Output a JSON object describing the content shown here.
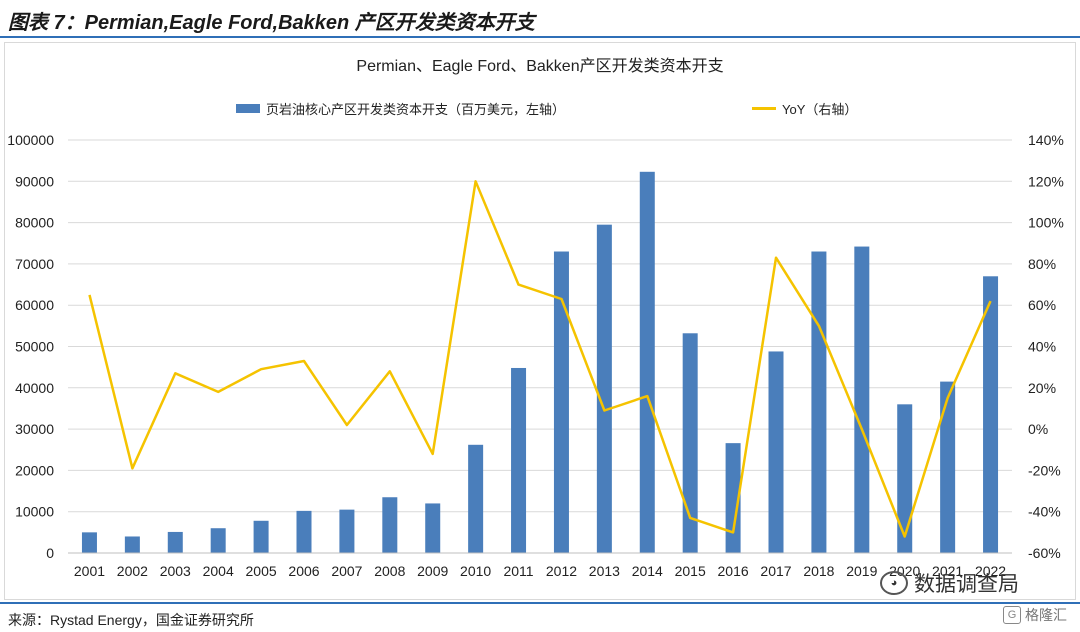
{
  "figure": {
    "title": "图表 7：Permian,Eagle Ford,Bakken 产区开发类资本开支",
    "source": "来源：Rystad Energy，国金证券研究所",
    "watermark_text": "数据调查局",
    "corner_logo_text": "格隆汇"
  },
  "colors": {
    "bar": "#4a7ebb",
    "line": "#f5c300",
    "accent_rule": "#2f6fb7",
    "grid": "#d9d9d9"
  },
  "chart_data": {
    "type": "bar",
    "title": "Permian、Eagle Ford、Bakken产区开发类资本开支",
    "categories": [
      "2001",
      "2002",
      "2003",
      "2004",
      "2005",
      "2006",
      "2007",
      "2008",
      "2009",
      "2010",
      "2011",
      "2012",
      "2013",
      "2014",
      "2015",
      "2016",
      "2017",
      "2018",
      "2019",
      "2020",
      "2021",
      "2022"
    ],
    "series": [
      {
        "name": "页岩油核心产区开发类资本开支（百万美元，左轴）",
        "type": "bar",
        "axis": "left",
        "values": [
          5000,
          4000,
          5100,
          6000,
          7800,
          10200,
          10500,
          13500,
          12000,
          26200,
          44800,
          73000,
          79500,
          92300,
          53200,
          26600,
          48800,
          73000,
          74200,
          36000,
          41500,
          67000
        ]
      },
      {
        "name": "YoY（右轴）",
        "type": "line",
        "axis": "right",
        "values": [
          0.65,
          -0.19,
          0.27,
          0.18,
          0.29,
          0.33,
          0.02,
          0.28,
          -0.12,
          1.2,
          0.7,
          0.63,
          0.09,
          0.16,
          -0.43,
          -0.5,
          0.83,
          0.5,
          0.0,
          -0.52,
          0.15,
          0.62
        ]
      }
    ],
    "yleft": {
      "min": 0,
      "max": 100000,
      "ticks": [
        "0",
        "10000",
        "20000",
        "30000",
        "40000",
        "50000",
        "60000",
        "70000",
        "80000",
        "90000",
        "100000"
      ]
    },
    "yright": {
      "min": -0.6,
      "max": 1.4,
      "ticks": [
        "-60%",
        "-40%",
        "-20%",
        "0%",
        "20%",
        "40%",
        "60%",
        "80%",
        "100%",
        "120%",
        "140%"
      ]
    },
    "grid": true,
    "legend_position": "top"
  }
}
